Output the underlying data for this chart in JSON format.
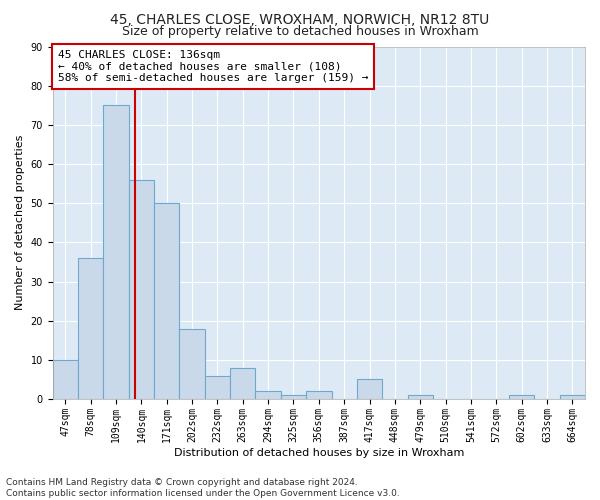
{
  "title1": "45, CHARLES CLOSE, WROXHAM, NORWICH, NR12 8TU",
  "title2": "Size of property relative to detached houses in Wroxham",
  "xlabel": "Distribution of detached houses by size in Wroxham",
  "ylabel": "Number of detached properties",
  "categories": [
    "47sqm",
    "78sqm",
    "109sqm",
    "140sqm",
    "171sqm",
    "202sqm",
    "232sqm",
    "263sqm",
    "294sqm",
    "325sqm",
    "356sqm",
    "387sqm",
    "417sqm",
    "448sqm",
    "479sqm",
    "510sqm",
    "541sqm",
    "572sqm",
    "602sqm",
    "633sqm",
    "664sqm"
  ],
  "values": [
    10,
    36,
    75,
    56,
    50,
    18,
    6,
    8,
    2,
    1,
    2,
    0,
    5,
    0,
    1,
    0,
    0,
    0,
    1,
    0,
    1
  ],
  "bar_color": "#c9d9ea",
  "bar_edge_color": "#6fa8cc",
  "vline_x": 2.75,
  "vline_color": "#cc0000",
  "annotation_text": "45 CHARLES CLOSE: 136sqm\n← 40% of detached houses are smaller (108)\n58% of semi-detached houses are larger (159) →",
  "annotation_box_color": "#ffffff",
  "annotation_box_edge_color": "#cc0000",
  "ylim": [
    0,
    90
  ],
  "yticks": [
    0,
    10,
    20,
    30,
    40,
    50,
    60,
    70,
    80,
    90
  ],
  "plot_bg_color": "#ddeaf5",
  "footer": "Contains HM Land Registry data © Crown copyright and database right 2024.\nContains public sector information licensed under the Open Government Licence v3.0.",
  "title_fontsize": 10,
  "subtitle_fontsize": 9,
  "axis_label_fontsize": 8,
  "tick_fontsize": 7,
  "annotation_fontsize": 8,
  "footer_fontsize": 6.5
}
